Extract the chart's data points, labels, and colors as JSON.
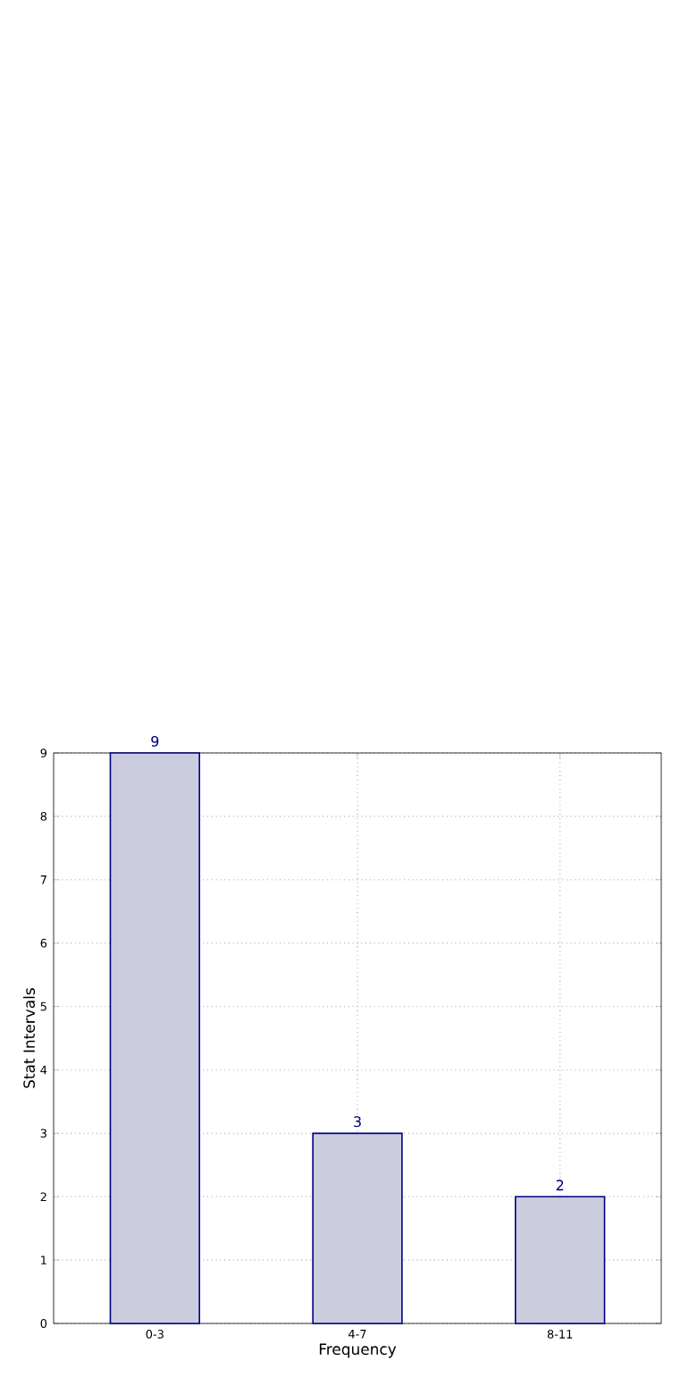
{
  "chart_data": {
    "type": "bar",
    "xlabel": "Frequency",
    "ylabel": "Stat Intervals",
    "categories": [
      "0-3",
      "4-7",
      "8-11"
    ],
    "values": [
      9,
      3,
      2
    ],
    "color": "#ccccdf",
    "ylim": [
      0,
      9
    ],
    "yticks": [
      0,
      1,
      2,
      3,
      4,
      5,
      6,
      7,
      8,
      9
    ],
    "grid": true,
    "data_labels": true
  }
}
